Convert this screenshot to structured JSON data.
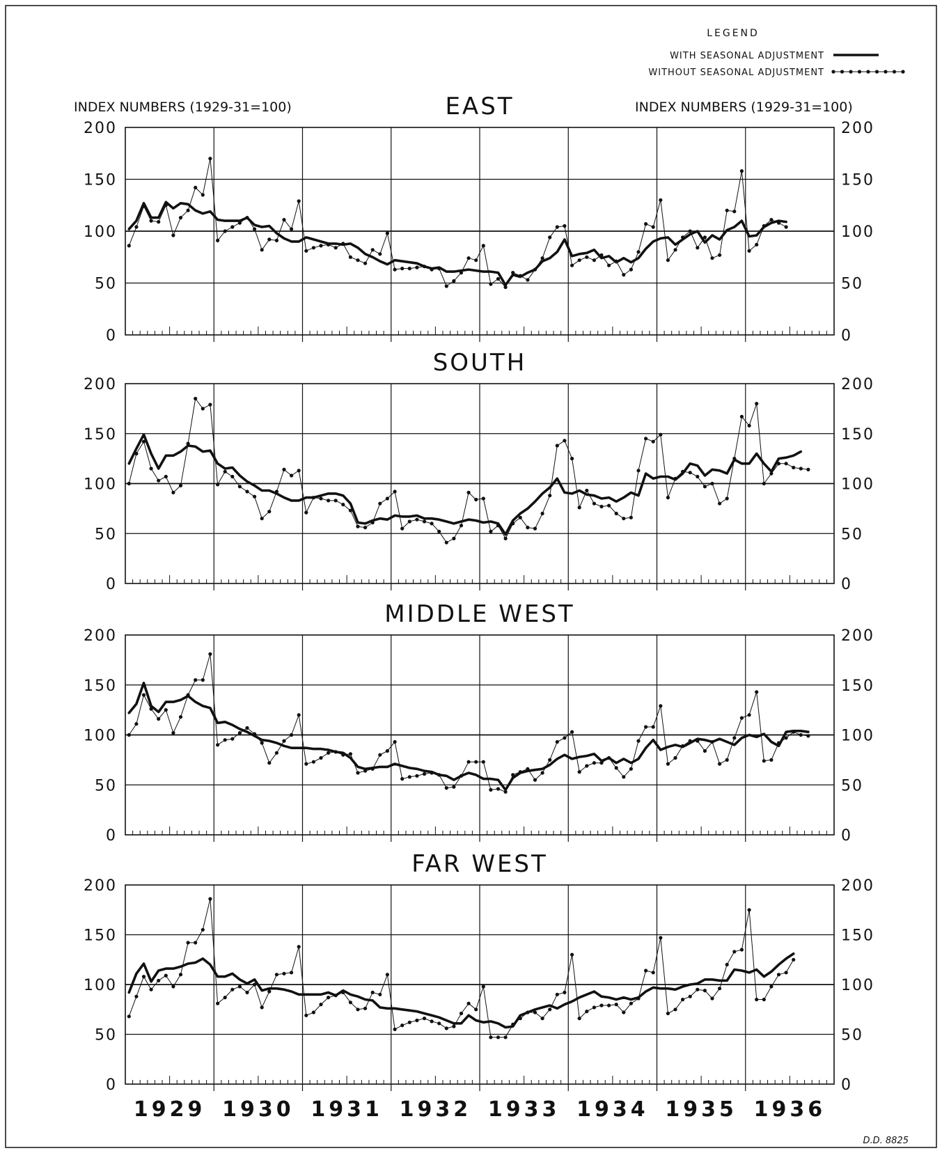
{
  "legend": {
    "title": "LEGEND",
    "with_label": "WITH SEASONAL ADJUSTMENT",
    "without_label": "WITHOUT SEASONAL ADJUSTMENT"
  },
  "axis_label_left": "INDEX NUMBERS (1929-31=100)",
  "axis_label_right": "INDEX NUMBERS (1929-31=100)",
  "ref_note": "D.D. 8825",
  "years": [
    "1929",
    "1930",
    "1931",
    "1932",
    "1933",
    "1934",
    "1935",
    "1936"
  ],
  "chart_data": [
    {
      "type": "line",
      "title": "EAST",
      "ylabel": "INDEX NUMBERS (1929-31=100)",
      "ylim": [
        0,
        200
      ],
      "yticks": [
        0,
        50,
        100,
        150,
        200
      ],
      "x_start": "1929-01",
      "x_step": "month",
      "series": [
        {
          "name": "WITH SEASONAL ADJUSTMENT",
          "style": "heavy",
          "values": [
            102,
            110,
            127,
            113,
            113,
            128,
            122,
            127,
            126,
            120,
            117,
            119,
            111,
            110,
            110,
            110,
            113,
            106,
            104,
            105,
            98,
            93,
            90,
            90,
            94,
            92,
            90,
            88,
            88,
            87,
            88,
            84,
            78,
            75,
            71,
            68,
            72,
            71,
            70,
            69,
            66,
            64,
            65,
            61,
            61,
            62,
            63,
            62,
            61,
            61,
            60,
            48,
            58,
            56,
            60,
            63,
            71,
            74,
            80,
            92,
            76,
            78,
            79,
            82,
            74,
            76,
            70,
            74,
            70,
            74,
            83,
            90,
            93,
            94,
            87,
            92,
            97,
            100,
            89,
            96,
            92,
            101,
            104,
            110,
            95,
            96,
            104,
            108,
            110,
            109
          ]
        },
        {
          "name": "WITHOUT SEASONAL ADJUSTMENT",
          "style": "dotted",
          "values": [
            86,
            104,
            124,
            110,
            109,
            125,
            96,
            113,
            120,
            142,
            135,
            170,
            91,
            100,
            104,
            108,
            113,
            102,
            82,
            92,
            91,
            111,
            102,
            129,
            81,
            84,
            86,
            87,
            84,
            88,
            75,
            72,
            69,
            82,
            78,
            98,
            63,
            64,
            64,
            65,
            66,
            63,
            64,
            47,
            52,
            60,
            74,
            72,
            86,
            49,
            54,
            46,
            60,
            57,
            53,
            63,
            74,
            94,
            104,
            105,
            67,
            72,
            75,
            72,
            77,
            67,
            71,
            58,
            63,
            80,
            107,
            104,
            130,
            72,
            82,
            94,
            100,
            84,
            94,
            74,
            77,
            120,
            119,
            158,
            81,
            87,
            105,
            111,
            108,
            104
          ]
        }
      ]
    },
    {
      "type": "line",
      "title": "SOUTH",
      "ylabel": "INDEX NUMBERS (1929-31=100)",
      "ylim": [
        0,
        200
      ],
      "yticks": [
        0,
        50,
        100,
        150,
        200
      ],
      "x_start": "1929-01",
      "x_step": "month",
      "series": [
        {
          "name": "WITH SEASONAL ADJUSTMENT",
          "style": "heavy",
          "values": [
            120,
            135,
            149,
            130,
            115,
            128,
            128,
            132,
            138,
            137,
            132,
            133,
            120,
            115,
            116,
            108,
            102,
            98,
            93,
            93,
            90,
            86,
            83,
            83,
            86,
            86,
            88,
            90,
            90,
            88,
            80,
            61,
            60,
            63,
            65,
            64,
            68,
            67,
            67,
            68,
            65,
            65,
            64,
            62,
            60,
            62,
            64,
            63,
            61,
            62,
            60,
            49,
            63,
            70,
            75,
            82,
            90,
            96,
            105,
            91,
            90,
            93,
            89,
            88,
            85,
            86,
            82,
            86,
            91,
            88,
            110,
            105,
            107,
            107,
            104,
            110,
            120,
            118,
            108,
            114,
            113,
            110,
            124,
            120,
            120,
            130,
            120,
            112,
            125,
            126,
            128,
            132
          ]
        },
        {
          "name": "WITHOUT SEASONAL ADJUSTMENT",
          "style": "dotted",
          "values": [
            100,
            130,
            142,
            115,
            103,
            107,
            91,
            98,
            140,
            185,
            175,
            179,
            99,
            112,
            107,
            97,
            92,
            87,
            65,
            72,
            92,
            114,
            108,
            113,
            71,
            86,
            85,
            83,
            83,
            79,
            73,
            57,
            56,
            61,
            80,
            85,
            92,
            55,
            62,
            64,
            62,
            60,
            52,
            41,
            45,
            58,
            91,
            84,
            85,
            52,
            58,
            45,
            60,
            66,
            56,
            55,
            70,
            88,
            138,
            143,
            125,
            76,
            93,
            80,
            77,
            78,
            70,
            65,
            66,
            113,
            145,
            142,
            149,
            86,
            105,
            112,
            111,
            107,
            97,
            100,
            80,
            85,
            125,
            167,
            158,
            180,
            100,
            110,
            120,
            120,
            116,
            115,
            114
          ]
        }
      ]
    },
    {
      "type": "line",
      "title": "MIDDLE WEST",
      "ylabel": "INDEX NUMBERS (1929-31=100)",
      "ylim": [
        0,
        200
      ],
      "yticks": [
        0,
        50,
        100,
        150,
        200
      ],
      "x_start": "1929-01",
      "x_step": "month",
      "series": [
        {
          "name": "WITH SEASONAL ADJUSTMENT",
          "style": "heavy",
          "values": [
            122,
            131,
            152,
            129,
            123,
            133,
            133,
            135,
            139,
            133,
            129,
            127,
            112,
            113,
            110,
            106,
            103,
            99,
            95,
            94,
            92,
            89,
            87,
            87,
            87,
            86,
            86,
            85,
            83,
            82,
            77,
            68,
            66,
            67,
            68,
            68,
            71,
            69,
            67,
            66,
            64,
            63,
            60,
            59,
            55,
            59,
            62,
            60,
            56,
            56,
            55,
            45,
            57,
            62,
            64,
            65,
            66,
            70,
            76,
            80,
            76,
            78,
            79,
            81,
            74,
            77,
            72,
            76,
            72,
            76,
            87,
            95,
            85,
            88,
            90,
            88,
            92,
            96,
            95,
            93,
            96,
            93,
            90,
            97,
            100,
            98,
            101,
            93,
            89,
            103,
            104,
            104,
            103
          ]
        },
        {
          "name": "WITHOUT SEASONAL ADJUSTMENT",
          "style": "dotted",
          "values": [
            100,
            111,
            140,
            126,
            116,
            125,
            102,
            118,
            140,
            155,
            155,
            181,
            90,
            95,
            96,
            102,
            107,
            101,
            92,
            72,
            82,
            94,
            100,
            120,
            71,
            73,
            77,
            82,
            83,
            80,
            81,
            62,
            64,
            66,
            80,
            84,
            93,
            56,
            58,
            59,
            61,
            62,
            60,
            47,
            48,
            59,
            73,
            73,
            73,
            45,
            46,
            43,
            60,
            63,
            66,
            55,
            62,
            75,
            93,
            97,
            103,
            63,
            69,
            72,
            72,
            77,
            67,
            58,
            66,
            94,
            108,
            108,
            129,
            71,
            77,
            89,
            94,
            94,
            84,
            93,
            71,
            75,
            97,
            117,
            120,
            143,
            74,
            75,
            92,
            97,
            103,
            100,
            99
          ]
        }
      ]
    },
    {
      "type": "line",
      "title": "FAR WEST",
      "ylabel": "INDEX NUMBERS (1929-31=100)",
      "ylim": [
        0,
        200
      ],
      "yticks": [
        0,
        50,
        100,
        150,
        200
      ],
      "x_start": "1929-01",
      "x_step": "month",
      "series": [
        {
          "name": "WITH SEASONAL ADJUSTMENT",
          "style": "heavy",
          "values": [
            92,
            111,
            121,
            103,
            114,
            116,
            116,
            118,
            121,
            122,
            126,
            120,
            108,
            108,
            111,
            105,
            101,
            105,
            94,
            96,
            96,
            95,
            93,
            90,
            90,
            90,
            90,
            92,
            89,
            94,
            90,
            88,
            85,
            84,
            77,
            76,
            76,
            75,
            74,
            73,
            71,
            69,
            67,
            64,
            61,
            61,
            69,
            64,
            62,
            63,
            61,
            57,
            58,
            69,
            72,
            75,
            77,
            79,
            76,
            80,
            83,
            87,
            90,
            93,
            88,
            87,
            85,
            87,
            85,
            87,
            93,
            97,
            96,
            96,
            95,
            98,
            100,
            101,
            105,
            105,
            104,
            104,
            115,
            114,
            112,
            115,
            108,
            113,
            120,
            126,
            131
          ]
        },
        {
          "name": "WITHOUT SEASONAL ADJUSTMENT",
          "style": "dotted",
          "values": [
            68,
            88,
            108,
            95,
            104,
            109,
            98,
            110,
            142,
            142,
            155,
            186,
            81,
            87,
            95,
            98,
            92,
            100,
            77,
            93,
            110,
            111,
            112,
            138,
            69,
            72,
            80,
            87,
            89,
            92,
            82,
            75,
            76,
            92,
            90,
            110,
            55,
            59,
            62,
            64,
            66,
            63,
            61,
            56,
            58,
            71,
            81,
            75,
            98,
            47,
            47,
            47,
            60,
            66,
            72,
            72,
            66,
            75,
            90,
            92,
            130,
            66,
            73,
            77,
            79,
            79,
            80,
            72,
            81,
            86,
            114,
            112,
            147,
            71,
            75,
            85,
            88,
            95,
            94,
            86,
            96,
            120,
            133,
            135,
            175,
            85,
            85,
            98,
            110,
            112,
            125
          ]
        }
      ]
    }
  ]
}
